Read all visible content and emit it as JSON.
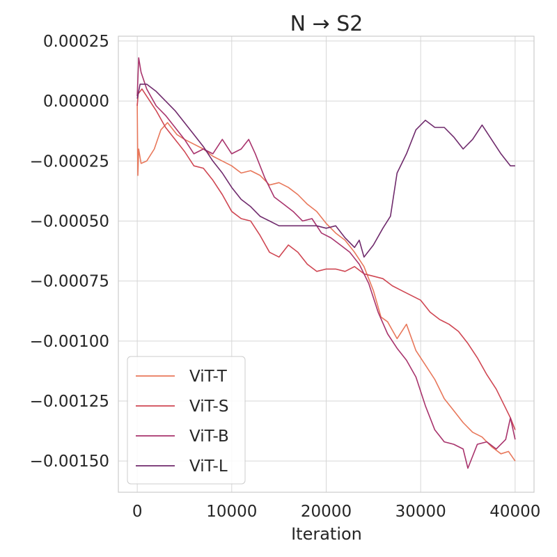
{
  "chart_data": {
    "type": "line",
    "title": "N → S2",
    "xlabel": "Iteration",
    "ylabel": "",
    "xlim": [
      -2000,
      42000
    ],
    "ylim": [
      -0.00163,
      0.00027
    ],
    "x_ticks": [
      0,
      10000,
      20000,
      30000,
      40000
    ],
    "x_tick_labels": [
      "0",
      "10000",
      "20000",
      "30000",
      "40000"
    ],
    "y_ticks": [
      0.00025,
      0.0,
      -0.00025,
      -0.0005,
      -0.00075,
      -0.001,
      -0.00125,
      -0.0015
    ],
    "y_tick_labels": [
      "0.00025",
      "0.00000",
      "−0.00025",
      "−0.00050",
      "−0.00075",
      "−0.00100",
      "−0.00125",
      "−0.00150"
    ],
    "grid": true,
    "legend_position": "lower-left",
    "series": [
      {
        "name": "ViT-T",
        "color": "#e8775a",
        "points": [
          [
            0,
            -1e-05
          ],
          [
            60,
            -0.00031
          ],
          [
            150,
            -0.0002
          ],
          [
            400,
            -0.00026
          ],
          [
            1000,
            -0.00025
          ],
          [
            1800,
            -0.0002
          ],
          [
            2500,
            -0.00012
          ],
          [
            3200,
            -9e-05
          ],
          [
            4200,
            -0.00014
          ],
          [
            5000,
            -0.00016
          ],
          [
            6000,
            -0.00018
          ],
          [
            7000,
            -0.0002
          ],
          [
            8000,
            -0.00023
          ],
          [
            9000,
            -0.00025
          ],
          [
            10000,
            -0.00027
          ],
          [
            11000,
            -0.0003
          ],
          [
            12000,
            -0.00029
          ],
          [
            13000,
            -0.00031
          ],
          [
            14000,
            -0.00035
          ],
          [
            15000,
            -0.00034
          ],
          [
            16000,
            -0.00036
          ],
          [
            17000,
            -0.00039
          ],
          [
            18000,
            -0.00043
          ],
          [
            19000,
            -0.00046
          ],
          [
            20000,
            -0.00051
          ],
          [
            21000,
            -0.00055
          ],
          [
            22000,
            -0.00058
          ],
          [
            23000,
            -0.00063
          ],
          [
            24000,
            -0.00069
          ],
          [
            25000,
            -0.00079
          ],
          [
            25800,
            -0.0009
          ],
          [
            26500,
            -0.00092
          ],
          [
            27500,
            -0.00099
          ],
          [
            28500,
            -0.00093
          ],
          [
            29500,
            -0.00104
          ],
          [
            30500,
            -0.0011
          ],
          [
            31500,
            -0.00116
          ],
          [
            32500,
            -0.00124
          ],
          [
            33500,
            -0.00129
          ],
          [
            34500,
            -0.00134
          ],
          [
            35500,
            -0.00138
          ],
          [
            36500,
            -0.0014
          ],
          [
            37500,
            -0.00144
          ],
          [
            38500,
            -0.00147
          ],
          [
            39300,
            -0.00146
          ],
          [
            40000,
            -0.0015
          ]
        ]
      },
      {
        "name": "ViT-S",
        "color": "#cf4652",
        "points": [
          [
            0,
            -2e-05
          ],
          [
            100,
            3e-05
          ],
          [
            500,
            5e-05
          ],
          [
            1000,
            2e-05
          ],
          [
            2000,
            -4e-05
          ],
          [
            3000,
            -0.00011
          ],
          [
            4000,
            -0.00016
          ],
          [
            5000,
            -0.00021
          ],
          [
            6000,
            -0.00027
          ],
          [
            7000,
            -0.00028
          ],
          [
            8000,
            -0.00033
          ],
          [
            9000,
            -0.00039
          ],
          [
            10000,
            -0.00046
          ],
          [
            11000,
            -0.00049
          ],
          [
            12000,
            -0.0005
          ],
          [
            13000,
            -0.00056
          ],
          [
            14000,
            -0.00063
          ],
          [
            15000,
            -0.00065
          ],
          [
            16000,
            -0.0006
          ],
          [
            17000,
            -0.00063
          ],
          [
            18000,
            -0.00068
          ],
          [
            19000,
            -0.00071
          ],
          [
            20000,
            -0.0007
          ],
          [
            21000,
            -0.0007
          ],
          [
            22000,
            -0.00071
          ],
          [
            23000,
            -0.00069
          ],
          [
            24000,
            -0.00072
          ],
          [
            25000,
            -0.00073
          ],
          [
            26000,
            -0.00074
          ],
          [
            27000,
            -0.00077
          ],
          [
            28000,
            -0.00079
          ],
          [
            29000,
            -0.00081
          ],
          [
            30000,
            -0.00083
          ],
          [
            31000,
            -0.00088
          ],
          [
            32000,
            -0.00091
          ],
          [
            33000,
            -0.00093
          ],
          [
            34000,
            -0.00096
          ],
          [
            35000,
            -0.00101
          ],
          [
            36000,
            -0.00107
          ],
          [
            37000,
            -0.00114
          ],
          [
            38000,
            -0.0012
          ],
          [
            39000,
            -0.00128
          ],
          [
            39500,
            -0.00132
          ],
          [
            40000,
            -0.00137
          ]
        ]
      },
      {
        "name": "ViT-B",
        "color": "#a8336c",
        "points": [
          [
            0,
            2e-05
          ],
          [
            150,
            0.00018
          ],
          [
            400,
            0.00012
          ],
          [
            1000,
            5e-05
          ],
          [
            2000,
            -2e-05
          ],
          [
            3000,
            -6e-05
          ],
          [
            4000,
            -0.00011
          ],
          [
            5000,
            -0.00016
          ],
          [
            6000,
            -0.00022
          ],
          [
            7000,
            -0.0002
          ],
          [
            8000,
            -0.00022
          ],
          [
            9000,
            -0.00016
          ],
          [
            10000,
            -0.00022
          ],
          [
            11000,
            -0.0002
          ],
          [
            11800,
            -0.00016
          ],
          [
            12500,
            -0.00022
          ],
          [
            13500,
            -0.00032
          ],
          [
            14500,
            -0.0004
          ],
          [
            15500,
            -0.00043
          ],
          [
            16500,
            -0.00046
          ],
          [
            17500,
            -0.0005
          ],
          [
            18500,
            -0.00049
          ],
          [
            19500,
            -0.00055
          ],
          [
            20500,
            -0.00057
          ],
          [
            21500,
            -0.0006
          ],
          [
            22500,
            -0.00063
          ],
          [
            23500,
            -0.00068
          ],
          [
            24500,
            -0.00076
          ],
          [
            25500,
            -0.00088
          ],
          [
            26500,
            -0.00097
          ],
          [
            27500,
            -0.00103
          ],
          [
            28500,
            -0.00108
          ],
          [
            29500,
            -0.00115
          ],
          [
            30500,
            -0.00127
          ],
          [
            31500,
            -0.00137
          ],
          [
            32500,
            -0.00142
          ],
          [
            33500,
            -0.00143
          ],
          [
            34500,
            -0.00145
          ],
          [
            35000,
            -0.00153
          ],
          [
            36000,
            -0.00143
          ],
          [
            37000,
            -0.00142
          ],
          [
            38000,
            -0.00145
          ],
          [
            39000,
            -0.00141
          ],
          [
            39500,
            -0.00132
          ],
          [
            40000,
            -0.00141
          ]
        ]
      },
      {
        "name": "ViT-L",
        "color": "#6f2a6c",
        "points": [
          [
            0,
            1e-05
          ],
          [
            300,
            7e-05
          ],
          [
            1000,
            7e-05
          ],
          [
            2000,
            4e-05
          ],
          [
            3000,
            0.0
          ],
          [
            4000,
            -4e-05
          ],
          [
            5000,
            -9e-05
          ],
          [
            6000,
            -0.00014
          ],
          [
            7000,
            -0.00019
          ],
          [
            8000,
            -0.00025
          ],
          [
            9000,
            -0.0003
          ],
          [
            10000,
            -0.00036
          ],
          [
            11000,
            -0.00041
          ],
          [
            12000,
            -0.00044
          ],
          [
            13000,
            -0.00048
          ],
          [
            14000,
            -0.0005
          ],
          [
            15000,
            -0.00052
          ],
          [
            16000,
            -0.00052
          ],
          [
            17000,
            -0.00052
          ],
          [
            18000,
            -0.00052
          ],
          [
            19000,
            -0.00052
          ],
          [
            20000,
            -0.00053
          ],
          [
            21000,
            -0.00052
          ],
          [
            22000,
            -0.00057
          ],
          [
            23000,
            -0.00061
          ],
          [
            23500,
            -0.00058
          ],
          [
            24000,
            -0.00065
          ],
          [
            25000,
            -0.0006
          ],
          [
            26000,
            -0.00053
          ],
          [
            26800,
            -0.00048
          ],
          [
            27500,
            -0.0003
          ],
          [
            28500,
            -0.00022
          ],
          [
            29500,
            -0.00012
          ],
          [
            30500,
            -8e-05
          ],
          [
            31500,
            -0.00011
          ],
          [
            32500,
            -0.00011
          ],
          [
            33500,
            -0.00015
          ],
          [
            34500,
            -0.0002
          ],
          [
            35500,
            -0.00016
          ],
          [
            36500,
            -0.0001
          ],
          [
            37500,
            -0.00016
          ],
          [
            38500,
            -0.00022
          ],
          [
            39500,
            -0.00027
          ],
          [
            40000,
            -0.00027
          ]
        ]
      }
    ]
  }
}
